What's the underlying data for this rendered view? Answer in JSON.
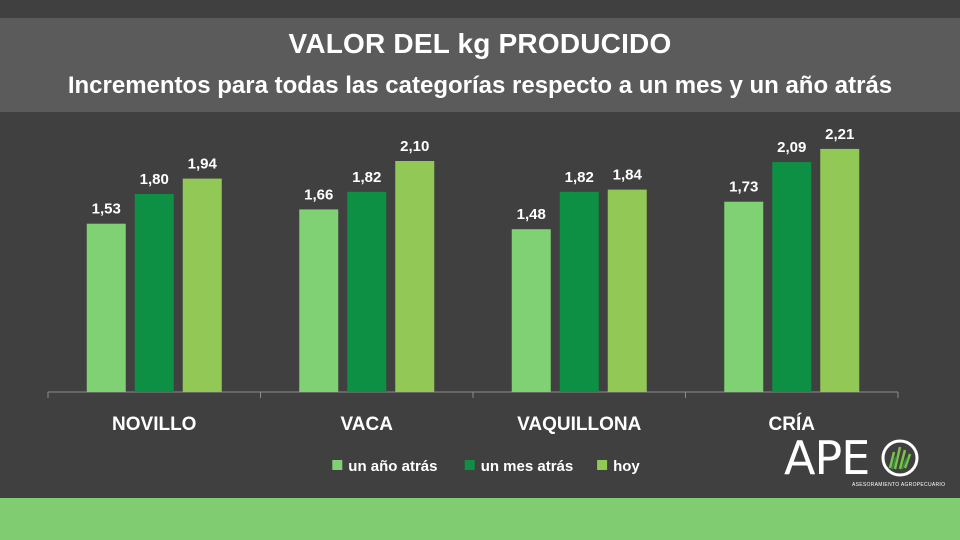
{
  "title": "VALOR DEL kg PRODUCIDO",
  "subtitle": "Incrementos para todas las categorías respecto a un mes y un año atrás",
  "colors": {
    "background": "#404040",
    "title_band": "#5b5b5b",
    "bottom_bar": "#80cc70"
  },
  "logo": {
    "text": "APE",
    "tagline": "ASESORAMIENTO AGROPECUARIO",
    "icon": "grass-circle-icon"
  },
  "chart_data": {
    "type": "bar",
    "categories": [
      "NOVILLO",
      "VACA",
      "VAQUILLONA",
      "CRÍA"
    ],
    "series": [
      {
        "name": "un año atrás",
        "color": "#80d074",
        "values": [
          1.53,
          1.66,
          1.48,
          1.73
        ],
        "labels": [
          "1,53",
          "1,66",
          "1,48",
          "1,73"
        ]
      },
      {
        "name": "un mes atrás",
        "color": "#0d9044",
        "values": [
          1.8,
          1.82,
          1.82,
          2.09
        ],
        "labels": [
          "1,80",
          "1,82",
          "1,82",
          "2,09"
        ]
      },
      {
        "name": "hoy",
        "color": "#92c956",
        "values": [
          1.94,
          2.1,
          1.84,
          2.21
        ],
        "labels": [
          "1,94",
          "2,10",
          "1,84",
          "2,21"
        ]
      }
    ],
    "ylim": [
      0,
      2.5
    ],
    "grid": false,
    "legend": "bottom-center",
    "xlabel": "",
    "ylabel": ""
  }
}
